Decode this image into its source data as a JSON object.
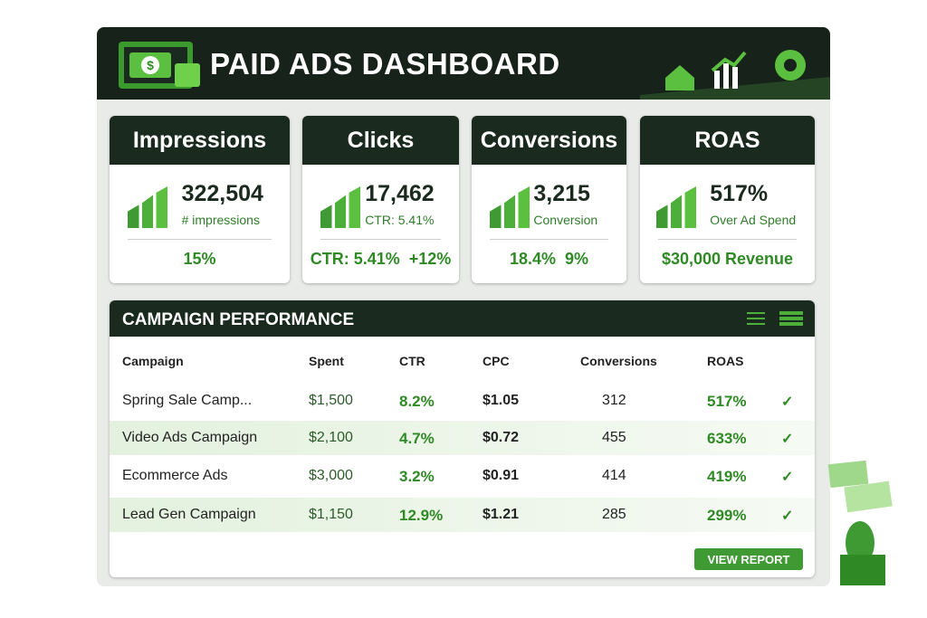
{
  "header": {
    "title": "PAID ADS DASHBOARD"
  },
  "kpis": [
    {
      "title": "Impressions",
      "value": "322,504",
      "sub": "# impressions",
      "footer": [
        "15%"
      ]
    },
    {
      "title": "Clicks",
      "value": "17,462",
      "sub": "CTR: 5.41%",
      "footer": [
        "CTR: 5.41%",
        "+12%"
      ]
    },
    {
      "title": "Conversions",
      "value": "3,215",
      "sub": "Conversion",
      "footer": [
        "18.4%",
        "9%"
      ]
    },
    {
      "title": "ROAS",
      "value": "517%",
      "sub": "Over Ad Spend",
      "footer": [
        "$30,000 Revenue"
      ]
    }
  ],
  "table": {
    "title": "CAMPAIGN PERFORMANCE",
    "columns": [
      "Campaign",
      "Spent",
      "CTR",
      "CPC",
      "Conversions",
      "ROAS"
    ],
    "rows": [
      [
        "Spring Sale Camp...",
        "$1,500",
        "8.2%",
        "$1.05",
        "312",
        "517%"
      ],
      [
        "Video Ads Campaign",
        "$2,100",
        "4.7%",
        "$0.72",
        "455",
        "633%"
      ],
      [
        "Ecommerce Ads",
        "$3,000",
        "3.2%",
        "$0.91",
        "414",
        "419%"
      ],
      [
        "Lead Gen Campaign",
        "$1,150",
        "12.9%",
        "$1.21",
        "285",
        "299%"
      ]
    ]
  },
  "button": "VIEW REPORT"
}
